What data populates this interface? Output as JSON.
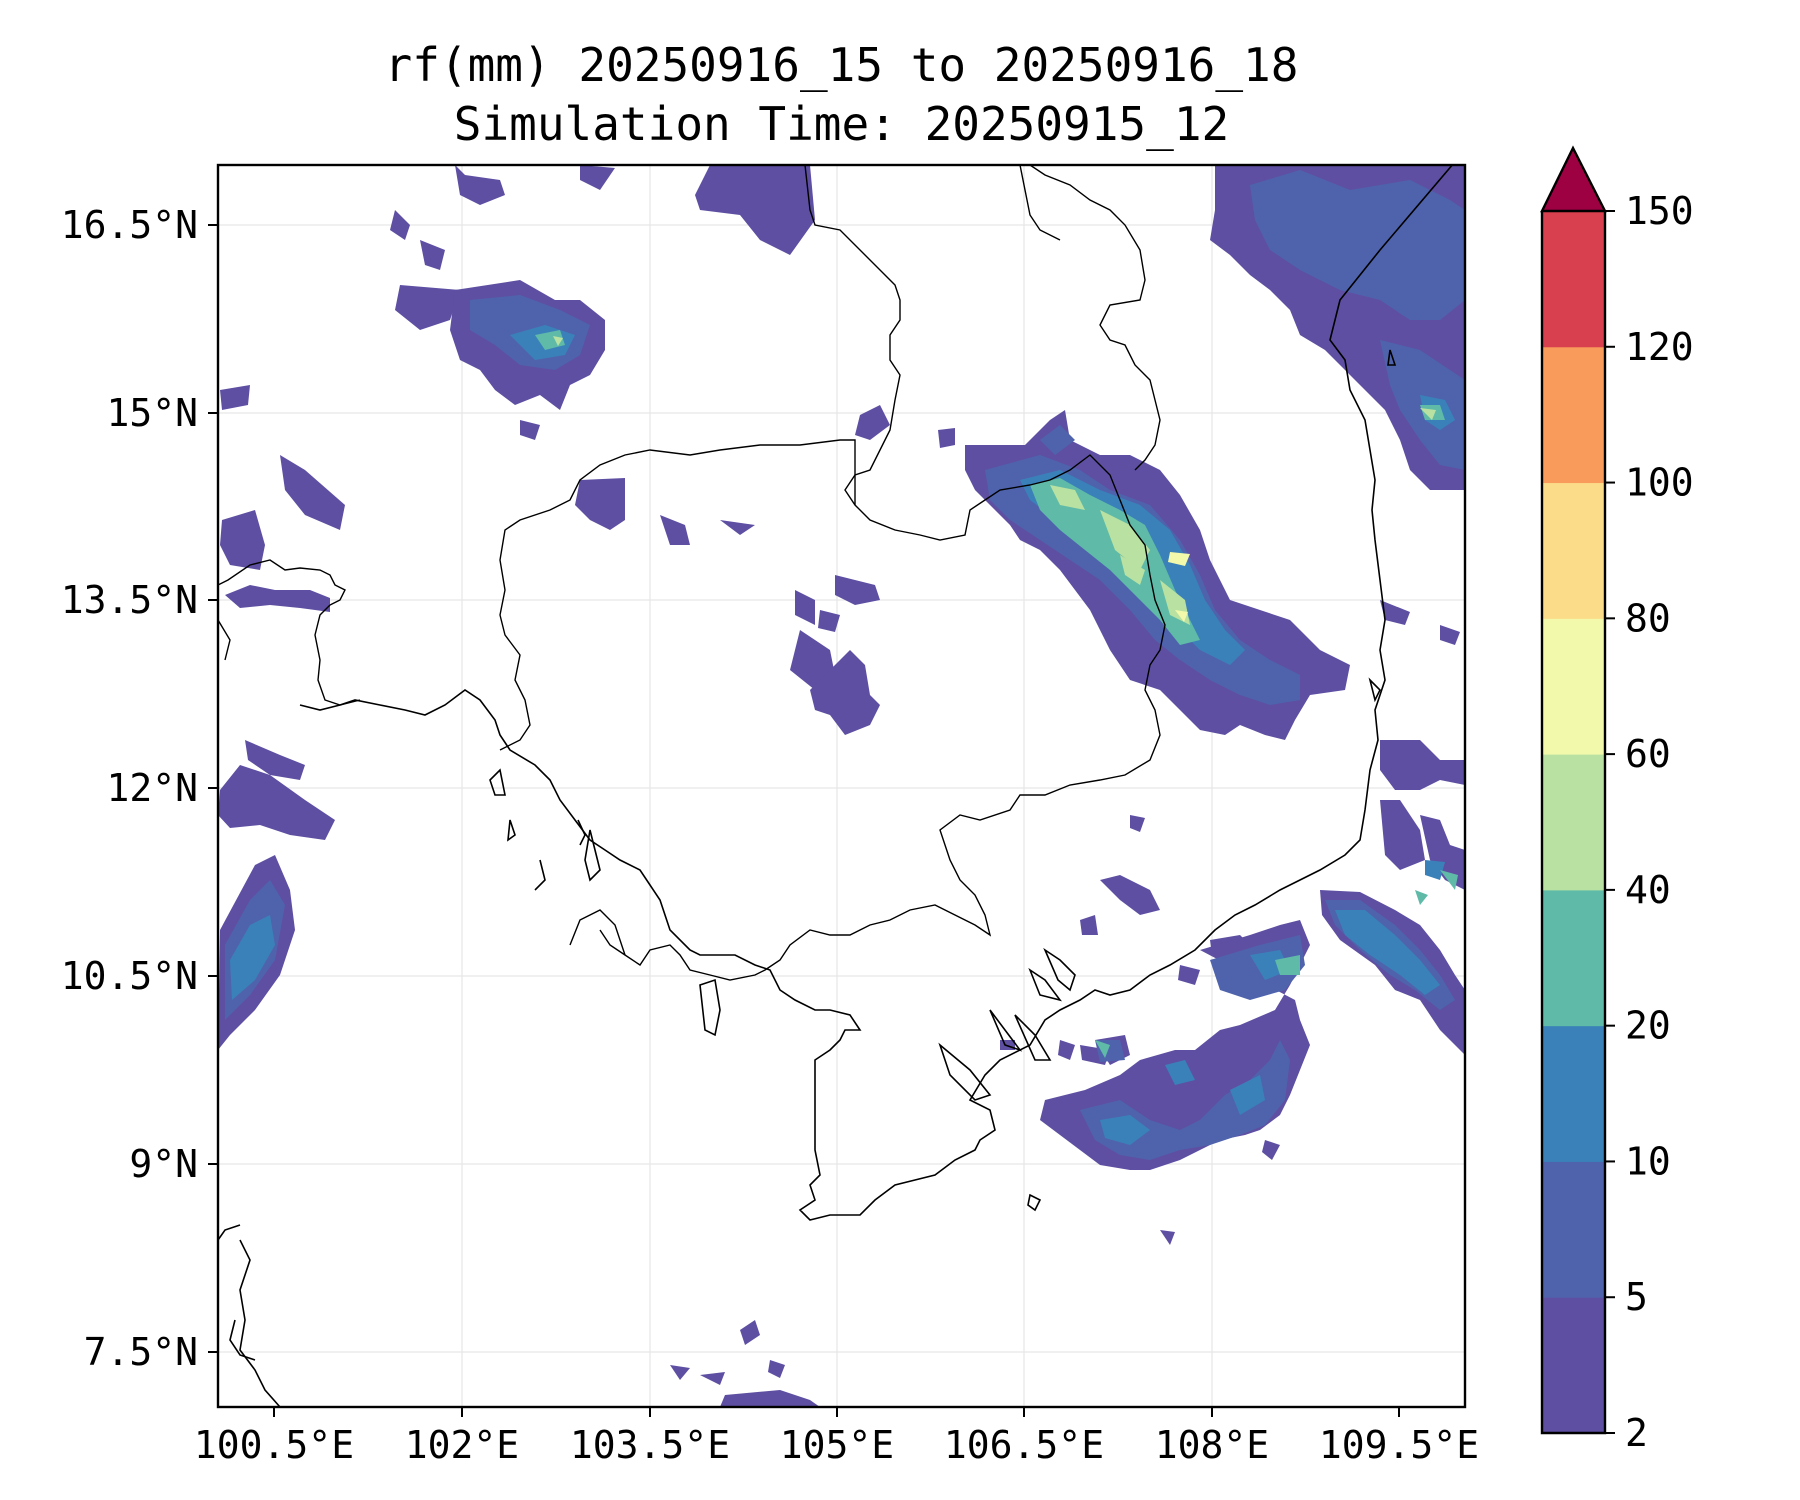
{
  "title": "rf(mm) 20250916_15 to 20250916_18",
  "subtitle": "Simulation Time: 20250915_12",
  "map": {
    "lon_range": [
      99.65,
      110.15
    ],
    "lat_range": [
      6.8,
      17.1
    ],
    "lon_ticks": [
      "100.5°E",
      "102°E",
      "103.5°E",
      "105°E",
      "106.5°E",
      "108°E",
      "109.5°E"
    ],
    "lat_ticks": [
      "16.5°N",
      "15°N",
      "13.5°N",
      "12°N",
      "10.5°N",
      "9°N",
      "7.5°N"
    ],
    "grid": true
  },
  "colorbar": {
    "levels": [
      "2",
      "5",
      "10",
      "20",
      "40",
      "60",
      "80",
      "100",
      "120",
      "150"
    ],
    "colors": [
      "#5e4fa2",
      "#4f63ad",
      "#3a81b9",
      "#5fbaa8",
      "#b9e1a2",
      "#f2f9ab",
      "#fbdc88",
      "#f99b5b",
      "#d8404f",
      "#9e0142"
    ],
    "extend": "max"
  }
}
